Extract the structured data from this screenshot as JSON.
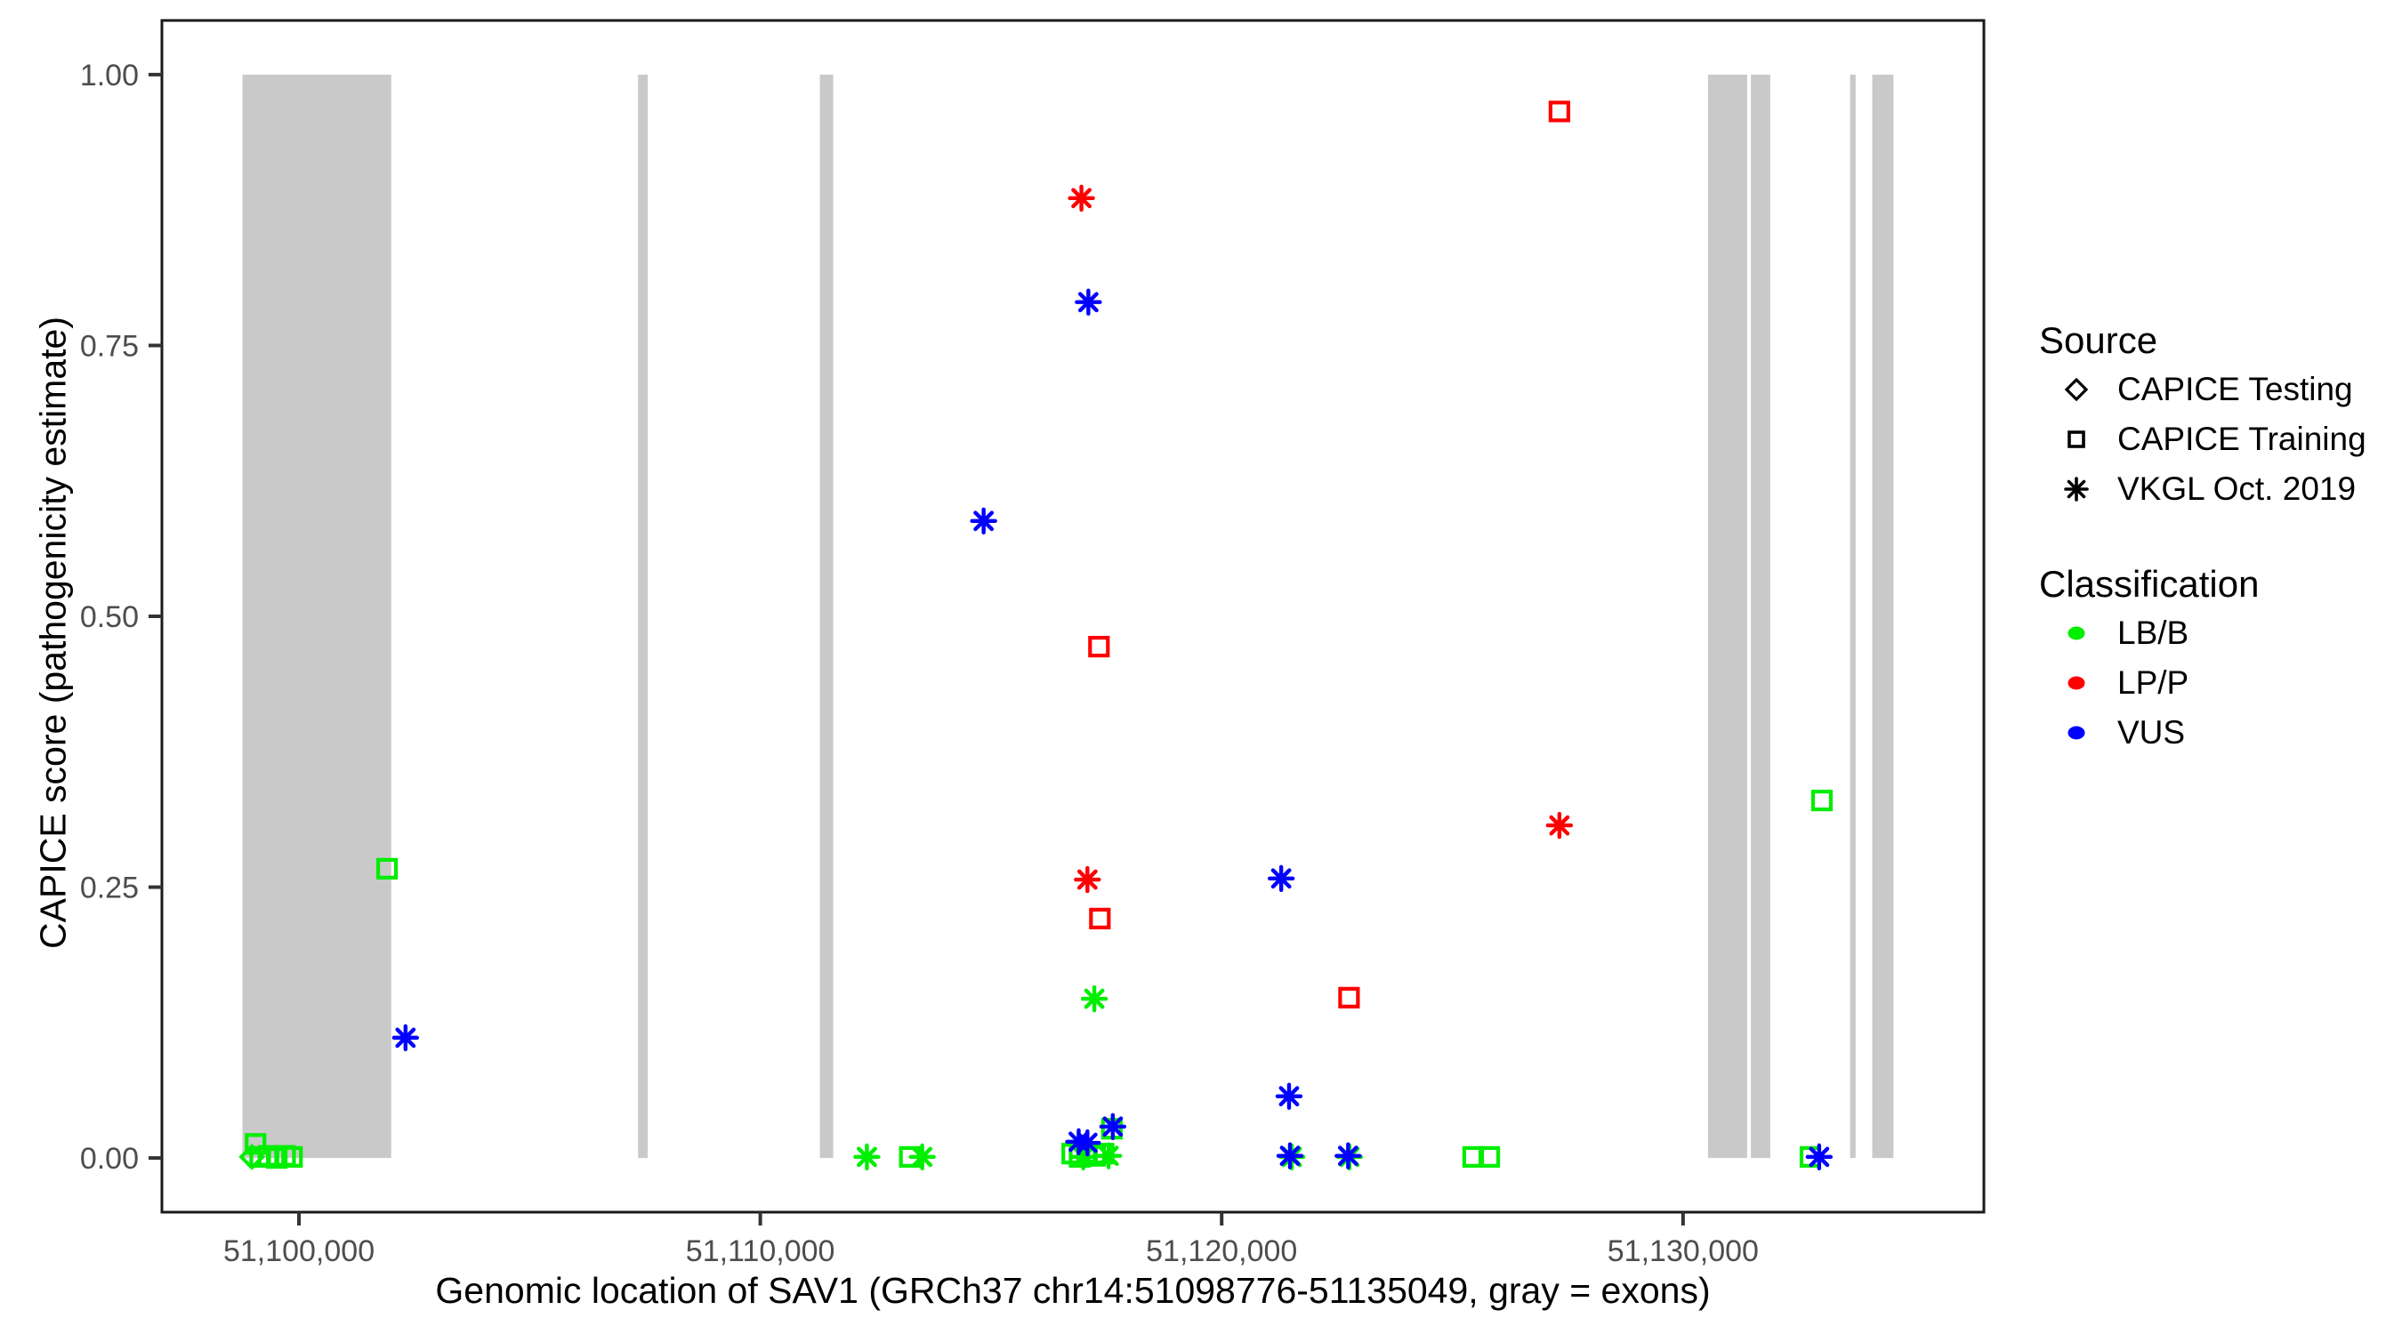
{
  "chart_data": {
    "type": "scatter",
    "title": "",
    "xlabel": "Genomic location of SAV1 (GRCh37 chr14:51098776-51135049, gray = exons)",
    "ylabel": "CAPICE score (pathogenicity estimate)",
    "x_domain": [
      51097030,
      51136520
    ],
    "y_domain": [
      -0.05,
      1.05
    ],
    "x_ticks": [
      {
        "value": 51100000,
        "label": "51,100,000"
      },
      {
        "value": 51110000,
        "label": "51,110,000"
      },
      {
        "value": 51120000,
        "label": "51,120,000"
      },
      {
        "value": 51130000,
        "label": "51,130,000"
      }
    ],
    "y_ticks": [
      {
        "value": 0.0,
        "label": "0.00"
      },
      {
        "value": 0.25,
        "label": "0.25"
      },
      {
        "value": 0.5,
        "label": "0.50"
      },
      {
        "value": 0.75,
        "label": "0.75"
      },
      {
        "value": 1.0,
        "label": "1.00"
      }
    ],
    "grid": false,
    "exon_color": "#C9C9C9",
    "exon_note": "gray = exons",
    "exons_bp": [
      [
        51098776,
        51102000
      ],
      [
        51107350,
        51107560
      ],
      [
        51111290,
        51111580
      ],
      [
        51130540,
        51131390
      ],
      [
        51131470,
        51131890
      ],
      [
        51133620,
        51133740
      ],
      [
        51134100,
        51134560
      ]
    ],
    "source_legend": {
      "title": "Source",
      "items": [
        {
          "shape": "diamond",
          "label": "CAPICE Testing"
        },
        {
          "shape": "square",
          "label": "CAPICE Training"
        },
        {
          "shape": "asterisk",
          "label": "VKGL Oct. 2019"
        }
      ]
    },
    "classification_legend": {
      "title": "Classification",
      "items": [
        {
          "label": "LB/B",
          "color": "#00EE00"
        },
        {
          "label": "LP/P",
          "color": "#FF0000"
        },
        {
          "label": "VUS",
          "color": "#0000FF"
        }
      ]
    },
    "shape_by_source": {
      "CAPICE Testing": "diamond",
      "CAPICE Training": "square",
      "VKGL Oct. 2019": "asterisk"
    },
    "color_by_class": {
      "LB/B": "#00EE00",
      "LP/P": "#FF0000",
      "VUS": "#0000FF"
    },
    "points": [
      {
        "bp": 51098980,
        "score": 0.001,
        "source": "CAPICE Testing",
        "classification": "LB/B"
      },
      {
        "bp": 51099060,
        "score": 0.013,
        "source": "CAPICE Training",
        "classification": "LB/B"
      },
      {
        "bp": 51099160,
        "score": 0.001,
        "source": "CAPICE Training",
        "classification": "LB/B"
      },
      {
        "bp": 51099340,
        "score": 0.002,
        "source": "CAPICE Training",
        "classification": "LB/B"
      },
      {
        "bp": 51099520,
        "score": 0.0,
        "source": "CAPICE Training",
        "classification": "LB/B"
      },
      {
        "bp": 51099700,
        "score": 0.002,
        "source": "CAPICE Training",
        "classification": "LB/B"
      },
      {
        "bp": 51099850,
        "score": 0.001,
        "source": "CAPICE Training",
        "classification": "LB/B"
      },
      {
        "bp": 51101910,
        "score": 0.267,
        "source": "CAPICE Training",
        "classification": "LB/B"
      },
      {
        "bp": 51102310,
        "score": 0.111,
        "source": "VKGL Oct. 2019",
        "classification": "VUS"
      },
      {
        "bp": 51112310,
        "score": 0.001,
        "source": "VKGL Oct. 2019",
        "classification": "LB/B"
      },
      {
        "bp": 51113240,
        "score": 0.001,
        "source": "CAPICE Training",
        "classification": "LB/B"
      },
      {
        "bp": 51113510,
        "score": 0.001,
        "source": "VKGL Oct. 2019",
        "classification": "LB/B"
      },
      {
        "bp": 51114840,
        "score": 0.588,
        "source": "VKGL Oct. 2019",
        "classification": "VUS"
      },
      {
        "bp": 51116960,
        "score": 0.886,
        "source": "VKGL Oct. 2019",
        "classification": "LP/P"
      },
      {
        "bp": 51117110,
        "score": 0.79,
        "source": "VKGL Oct. 2019",
        "classification": "VUS"
      },
      {
        "bp": 51117340,
        "score": 0.472,
        "source": "CAPICE Training",
        "classification": "LP/P"
      },
      {
        "bp": 51117090,
        "score": 0.257,
        "source": "VKGL Oct. 2019",
        "classification": "LP/P"
      },
      {
        "bp": 51117360,
        "score": 0.221,
        "source": "CAPICE Training",
        "classification": "LP/P"
      },
      {
        "bp": 51117240,
        "score": 0.147,
        "source": "VKGL Oct. 2019",
        "classification": "LB/B"
      },
      {
        "bp": 51116900,
        "score": 0.015,
        "source": "VKGL Oct. 2019",
        "classification": "VUS"
      },
      {
        "bp": 51117090,
        "score": 0.014,
        "source": "VKGL Oct. 2019",
        "classification": "VUS"
      },
      {
        "bp": 51116760,
        "score": 0.004,
        "source": "CAPICE Training",
        "classification": "LB/B"
      },
      {
        "bp": 51116920,
        "score": 0.001,
        "source": "CAPICE Training",
        "classification": "LB/B"
      },
      {
        "bp": 51117080,
        "score": 0.005,
        "source": "CAPICE Training",
        "classification": "LB/B"
      },
      {
        "bp": 51117260,
        "score": 0.002,
        "source": "CAPICE Training",
        "classification": "LB/B"
      },
      {
        "bp": 51117440,
        "score": 0.004,
        "source": "CAPICE Training",
        "classification": "LB/B"
      },
      {
        "bp": 51117000,
        "score": 0.001,
        "source": "VKGL Oct. 2019",
        "classification": "LB/B"
      },
      {
        "bp": 51117550,
        "score": 0.002,
        "source": "VKGL Oct. 2019",
        "classification": "LB/B"
      },
      {
        "bp": 51117620,
        "score": 0.027,
        "source": "CAPICE Training",
        "classification": "LB/B"
      },
      {
        "bp": 51117640,
        "score": 0.029,
        "source": "VKGL Oct. 2019",
        "classification": "VUS"
      },
      {
        "bp": 51121290,
        "score": 0.258,
        "source": "VKGL Oct. 2019",
        "classification": "VUS"
      },
      {
        "bp": 51121460,
        "score": 0.057,
        "source": "VKGL Oct. 2019",
        "classification": "VUS"
      },
      {
        "bp": 51121480,
        "score": 0.002,
        "source": "VKGL Oct. 2019",
        "classification": "VUS"
      },
      {
        "bp": 51121520,
        "score": 0.001,
        "source": "VKGL Oct. 2019",
        "classification": "LB/B"
      },
      {
        "bp": 51122740,
        "score": 0.002,
        "source": "VKGL Oct. 2019",
        "classification": "VUS"
      },
      {
        "bp": 51122770,
        "score": 0.001,
        "source": "VKGL Oct. 2019",
        "classification": "LB/B"
      },
      {
        "bp": 51122760,
        "score": 0.148,
        "source": "CAPICE Training",
        "classification": "LP/P"
      },
      {
        "bp": 51125450,
        "score": 0.001,
        "source": "CAPICE Training",
        "classification": "LB/B"
      },
      {
        "bp": 51125800,
        "score": 0.001,
        "source": "CAPICE Training",
        "classification": "LB/B"
      },
      {
        "bp": 51127320,
        "score": 0.966,
        "source": "CAPICE Training",
        "classification": "LP/P"
      },
      {
        "bp": 51127320,
        "score": 0.307,
        "source": "VKGL Oct. 2019",
        "classification": "LP/P"
      },
      {
        "bp": 51133010,
        "score": 0.33,
        "source": "CAPICE Training",
        "classification": "LB/B"
      },
      {
        "bp": 51132760,
        "score": 0.001,
        "source": "CAPICE Training",
        "classification": "LB/B"
      },
      {
        "bp": 51132950,
        "score": 0.001,
        "source": "VKGL Oct. 2019",
        "classification": "VUS"
      }
    ],
    "style": {
      "panel_border_color": "#1a1a1a",
      "tick_color": "#333333",
      "tick_label_color": "#4D4D4D"
    }
  }
}
